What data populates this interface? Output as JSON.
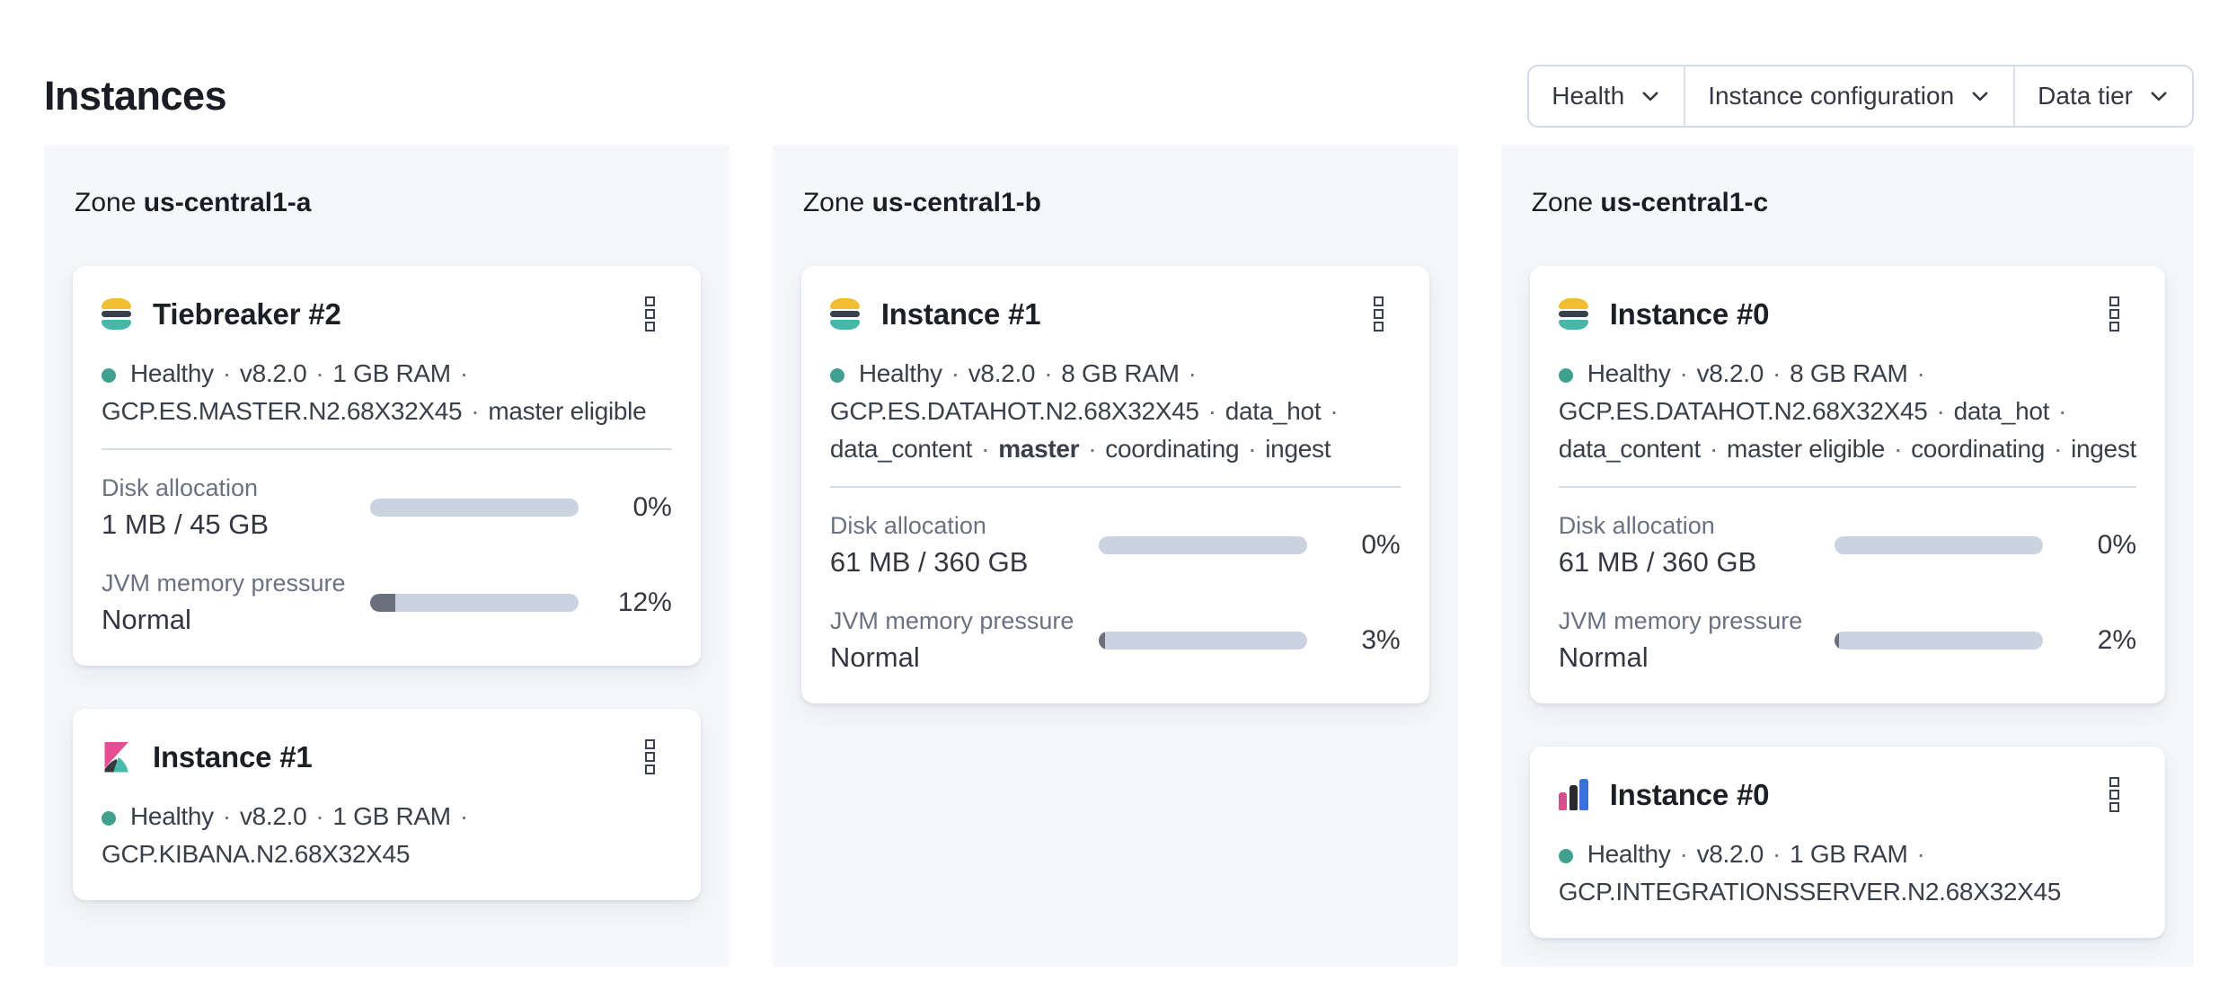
{
  "page": {
    "title": "Instances"
  },
  "filters": [
    {
      "label": "Health"
    },
    {
      "label": "Instance configuration"
    },
    {
      "label": "Data tier"
    }
  ],
  "colors": {
    "healthy_dot": "#41a191",
    "progress_track": "#cbd3e0",
    "progress_fill": "#6a707c",
    "es_logo": {
      "top": "#f1be32",
      "mid": "#37404c",
      "bottom": "#48b7a8"
    },
    "kibana_logo": {
      "pink": "#e64d93",
      "dark": "#35393f",
      "teal": "#4ab9a9"
    },
    "integrations_logo": {
      "pink": "#d5518e",
      "dark": "#272a31",
      "blue": "#3a70d9"
    }
  },
  "zones": [
    {
      "zone_prefix": "Zone",
      "name": "us-central1-a",
      "cards": [
        {
          "icon": "elasticsearch",
          "title": "Tiebreaker #2",
          "health": "Healthy",
          "status_lines": [
            [
              {
                "t": "Healthy"
              },
              {
                "sep": 1
              },
              {
                "t": "v8.2.0"
              },
              {
                "sep": 1
              },
              {
                "t": "1 GB RAM"
              },
              {
                "sep": 1
              }
            ],
            [
              {
                "t": "GCP.ES.MASTER.N2.68X32X45"
              },
              {
                "sep": 1
              },
              {
                "t": "master eligible"
              }
            ]
          ],
          "metrics": [
            {
              "label": "Disk allocation",
              "value": "1 MB / 45 GB",
              "percent": "0%",
              "fill_pct": 0
            },
            {
              "label": "JVM memory pressure",
              "value": "Normal",
              "percent": "12%",
              "fill_pct": 12
            }
          ]
        },
        {
          "icon": "kibana",
          "title": "Instance #1",
          "health": "Healthy",
          "status_lines": [
            [
              {
                "t": "Healthy"
              },
              {
                "sep": 1
              },
              {
                "t": "v8.2.0"
              },
              {
                "sep": 1
              },
              {
                "t": "1 GB RAM"
              },
              {
                "sep": 1
              }
            ],
            [
              {
                "t": "GCP.KIBANA.N2.68X32X45"
              }
            ]
          ]
        }
      ]
    },
    {
      "zone_prefix": "Zone",
      "name": "us-central1-b",
      "cards": [
        {
          "icon": "elasticsearch",
          "title": "Instance #1",
          "health": "Healthy",
          "status_lines": [
            [
              {
                "t": "Healthy"
              },
              {
                "sep": 1
              },
              {
                "t": "v8.2.0"
              },
              {
                "sep": 1
              },
              {
                "t": "8 GB RAM"
              },
              {
                "sep": 1
              }
            ],
            [
              {
                "t": "GCP.ES.DATAHOT.N2.68X32X45"
              },
              {
                "sep": 1
              },
              {
                "t": "data_hot"
              },
              {
                "sep": 1
              }
            ],
            [
              {
                "t": "data_content"
              },
              {
                "sep": 1
              },
              {
                "t": "master",
                "b": 1
              },
              {
                "sep": 1
              },
              {
                "t": "coordinating"
              },
              {
                "sep": 1
              },
              {
                "t": "ingest"
              }
            ]
          ],
          "metrics": [
            {
              "label": "Disk allocation",
              "value": "61 MB / 360 GB",
              "percent": "0%",
              "fill_pct": 0
            },
            {
              "label": "JVM memory pressure",
              "value": "Normal",
              "percent": "3%",
              "fill_pct": 3
            }
          ]
        }
      ]
    },
    {
      "zone_prefix": "Zone",
      "name": "us-central1-c",
      "cards": [
        {
          "icon": "elasticsearch",
          "title": "Instance #0",
          "health": "Healthy",
          "status_lines": [
            [
              {
                "t": "Healthy"
              },
              {
                "sep": 1
              },
              {
                "t": "v8.2.0"
              },
              {
                "sep": 1
              },
              {
                "t": "8 GB RAM"
              },
              {
                "sep": 1
              }
            ],
            [
              {
                "t": "GCP.ES.DATAHOT.N2.68X32X45"
              },
              {
                "sep": 1
              },
              {
                "t": "data_hot"
              },
              {
                "sep": 1
              }
            ],
            [
              {
                "t": "data_content"
              },
              {
                "sep": 1
              },
              {
                "t": "master eligible"
              },
              {
                "sep": 1
              },
              {
                "t": "coordinating"
              },
              {
                "sep": 1
              },
              {
                "t": "ingest"
              }
            ]
          ],
          "metrics": [
            {
              "label": "Disk allocation",
              "value": "61 MB / 360 GB",
              "percent": "0%",
              "fill_pct": 0
            },
            {
              "label": "JVM memory pressure",
              "value": "Normal",
              "percent": "2%",
              "fill_pct": 2
            }
          ]
        },
        {
          "icon": "integrations-server",
          "title": "Instance #0",
          "health": "Healthy",
          "status_lines": [
            [
              {
                "t": "Healthy"
              },
              {
                "sep": 1
              },
              {
                "t": "v8.2.0"
              },
              {
                "sep": 1
              },
              {
                "t": "1 GB RAM"
              },
              {
                "sep": 1
              }
            ],
            [
              {
                "t": "GCP.INTEGRATIONSSERVER.N2.68X32X45"
              }
            ]
          ]
        }
      ]
    }
  ]
}
